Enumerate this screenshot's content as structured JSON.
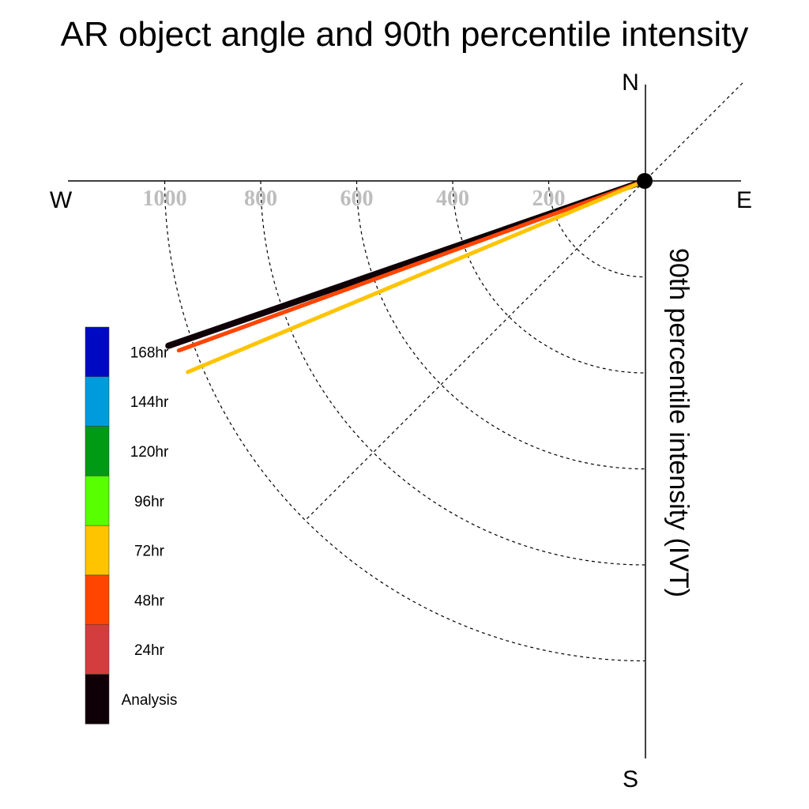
{
  "chart_data": {
    "type": "polar-vector",
    "title": "AR object angle and 90th percentile intensity",
    "radial_label": "90th percentile intensity (IVT)",
    "directions": {
      "north": "N",
      "south": "S",
      "east": "E",
      "west": "W"
    },
    "radial_ticks": [
      200,
      400,
      600,
      800,
      1000
    ],
    "radial_range": [
      0,
      1200
    ],
    "grid": "on",
    "legend_position": "left",
    "legend": [
      {
        "label": "168hr",
        "color": "#0009C2"
      },
      {
        "label": "144hr",
        "color": "#009BDD"
      },
      {
        "label": "120hr",
        "color": "#009A14"
      },
      {
        "label": "96hr",
        "color": "#57FF00"
      },
      {
        "label": "72hr",
        "color": "#FFC400"
      },
      {
        "label": "48hr",
        "color": "#FF4500"
      },
      {
        "label": "24hr",
        "color": "#D33D3D"
      },
      {
        "label": "Analysis",
        "color": "#0F0008"
      }
    ],
    "series": [
      {
        "name": "Analysis",
        "color": "#0F0008",
        "angle_deg": 250.9,
        "intensity": 1050
      },
      {
        "name": "24hr",
        "color": "#D33D3D",
        "angle_deg": 250.0,
        "intensity": 1030
      },
      {
        "name": "48hr",
        "color": "#FF4500",
        "angle_deg": 250.0,
        "intensity": 1033
      },
      {
        "name": "72hr",
        "color": "#FFC400",
        "angle_deg": 247.3,
        "intensity": 1032
      }
    ]
  }
}
